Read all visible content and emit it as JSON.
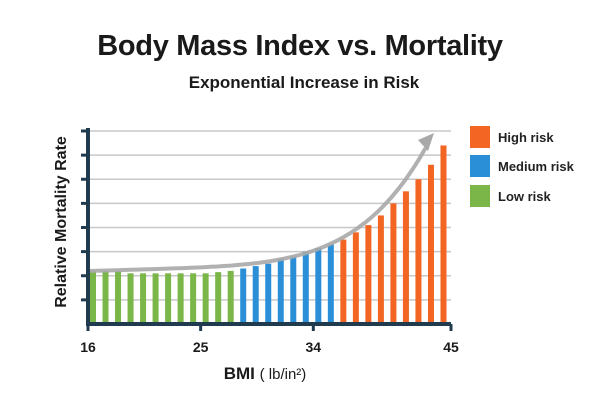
{
  "chart_data": {
    "type": "bar",
    "title": "Body Mass Index vs. Mortality",
    "subtitle": "Exponential Increase in Risk",
    "xlabel": "BMI",
    "xlabel_unit": "( lb/in²)",
    "ylabel": "Relative Mortality Rate",
    "xlim": [
      16,
      45
    ],
    "ylim": [
      0,
      8
    ],
    "x_ticks": [
      "16",
      "25",
      "34",
      "45"
    ],
    "grid": true,
    "legend_position": "right",
    "trend_arrow": "exponential curve with arrowhead, top-right",
    "series": [
      {
        "name": "Low risk",
        "color": "#7ab648",
        "x": [
          16,
          17,
          18,
          19,
          20,
          21,
          22,
          23,
          24,
          25,
          26,
          27
        ],
        "values": [
          2.2,
          2.2,
          2.2,
          2.1,
          2.1,
          2.1,
          2.1,
          2.1,
          2.1,
          2.1,
          2.15,
          2.2
        ]
      },
      {
        "name": "Medium risk",
        "color": "#2b8fd8",
        "x": [
          28,
          29,
          30,
          31,
          32,
          33,
          34,
          35
        ],
        "values": [
          2.3,
          2.4,
          2.5,
          2.7,
          2.8,
          3.0,
          3.15,
          3.3
        ]
      },
      {
        "name": "High risk",
        "color": "#f26522",
        "x": [
          36,
          37,
          38,
          39,
          40,
          41,
          42,
          43,
          44
        ],
        "values": [
          3.5,
          3.8,
          4.1,
          4.5,
          5.0,
          5.5,
          6.0,
          6.6,
          7.4
        ]
      }
    ]
  },
  "legend": [
    {
      "label": "High risk",
      "color": "#f26522"
    },
    {
      "label": "Medium risk",
      "color": "#2b8fd8"
    },
    {
      "label": "Low risk",
      "color": "#7ab648"
    }
  ]
}
